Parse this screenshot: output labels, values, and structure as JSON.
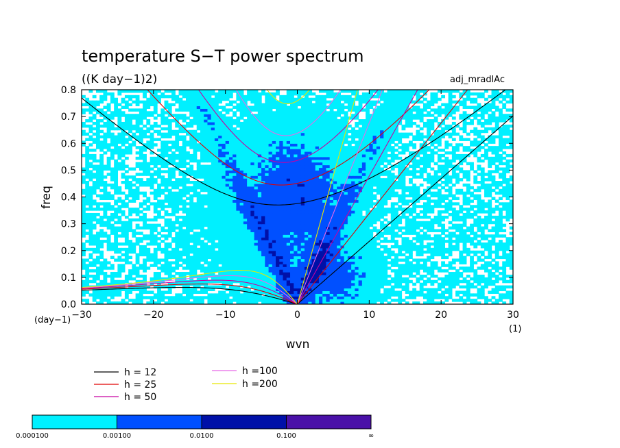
{
  "chart_data": {
    "type": "heatmap",
    "title": "temperature S−T power spectrum",
    "subtitle": "((K day−1)2)",
    "experiment": "adj_mradlAc",
    "xlabel": "wvn",
    "ylabel": "freq",
    "y_unit": "(day−1)",
    "x_unit": "(1)",
    "xlim": [
      -30,
      30
    ],
    "ylim": [
      0,
      0.8
    ],
    "x_ticks": [
      -30,
      -20,
      -10,
      0,
      10,
      20,
      30
    ],
    "y_ticks": [
      0.0,
      0.1,
      0.2,
      0.3,
      0.4,
      0.5,
      0.6,
      0.7,
      0.8
    ],
    "x_tick_labels": [
      "−30",
      "−20",
      "−10",
      "0",
      "10",
      "20",
      "30"
    ],
    "y_tick_labels": [
      "0.0",
      "0.1",
      "0.2",
      "0.3",
      "0.4",
      "0.5",
      "0.6",
      "0.7",
      "0.8"
    ],
    "levels": [
      {
        "label": "0.000100",
        "color": "#00f0ff"
      },
      {
        "label": "0.00100",
        "color": "#0050ff"
      },
      {
        "label": "0.0100",
        "color": "#0010a8"
      },
      {
        "label": "0.100",
        "color": "#4a10a8"
      },
      {
        "label": "∞",
        "color": ""
      }
    ],
    "dispersion_curves": [
      {
        "name": "h = 12",
        "color": "#000000"
      },
      {
        "name": "h = 25",
        "color": "#e00000"
      },
      {
        "name": "h = 50",
        "color": "#c800a0"
      },
      {
        "name": "h =100",
        "color": "#e868e8"
      },
      {
        "name": "h =200",
        "color": "#e8e800"
      }
    ]
  }
}
